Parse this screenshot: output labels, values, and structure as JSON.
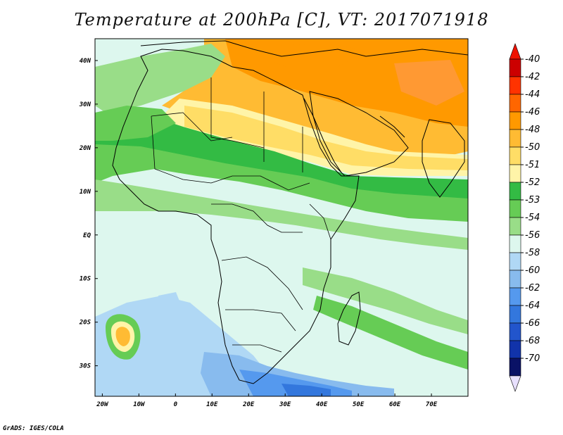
{
  "title": "Temperature at 200hPa [C], VT: 2017071918",
  "credit": "GrADS: IGES/COLA",
  "map": {
    "lon_ticks": [
      "20W",
      "10W",
      "0",
      "10E",
      "20E",
      "30E",
      "40E",
      "50E",
      "60E",
      "70E"
    ],
    "lat_ticks": [
      "40N",
      "30N",
      "20N",
      "10N",
      "EQ",
      "10S",
      "20S",
      "30S"
    ],
    "lon_values": [
      -20,
      -10,
      0,
      10,
      20,
      30,
      40,
      50,
      60,
      70
    ],
    "lat_values": [
      40,
      30,
      20,
      10,
      0,
      -10,
      -20,
      -30
    ],
    "lon_range": [
      -22,
      80
    ],
    "lat_range": [
      -37,
      45
    ]
  },
  "colorbar": {
    "labels": [
      "-40",
      "-42",
      "-44",
      "-46",
      "-48",
      "-50",
      "-51",
      "-52",
      "-53",
      "-54",
      "-56",
      "-58",
      "-60",
      "-62",
      "-64",
      "-66",
      "-68",
      "-70"
    ],
    "colors": [
      "#cc0000",
      "#ff3300",
      "#ff6600",
      "#ff9900",
      "#ffbb33",
      "#ffdd66",
      "#fff4a8",
      "#33bb44",
      "#66cc55",
      "#99dd88",
      "#ddf7ee",
      "#b0d8f5",
      "#88bbee",
      "#5599ee",
      "#3377dd",
      "#2255cc",
      "#1133aa",
      "#0a1266"
    ],
    "top_arrow_color": "#ee1100",
    "bottom_arrow_color": "#e8e0ff"
  },
  "colors": {
    "ocean_default": "#ddf7ee",
    "land_outline": "#000000"
  }
}
